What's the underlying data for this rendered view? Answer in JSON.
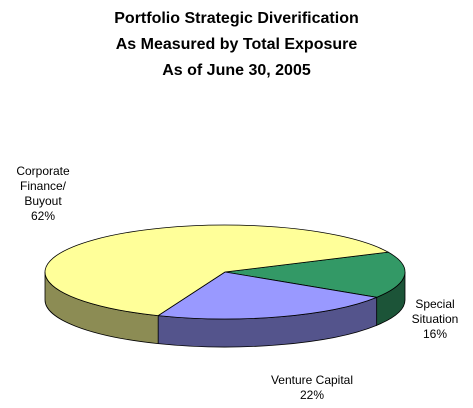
{
  "chart_data": {
    "type": "pie3d",
    "title": [
      "Portfolio Strategic Diverification",
      "As Measured by Total Exposure",
      "As of June 30, 2005"
    ],
    "categories": [
      "Special Situation",
      "Venture Capital",
      "Corporate Finance/ Buyout"
    ],
    "values": [
      16,
      22,
      62
    ],
    "value_labels": [
      "16%",
      "22%",
      "62%"
    ],
    "colors": [
      "#339966",
      "#9999ff",
      "#ffff99"
    ]
  }
}
